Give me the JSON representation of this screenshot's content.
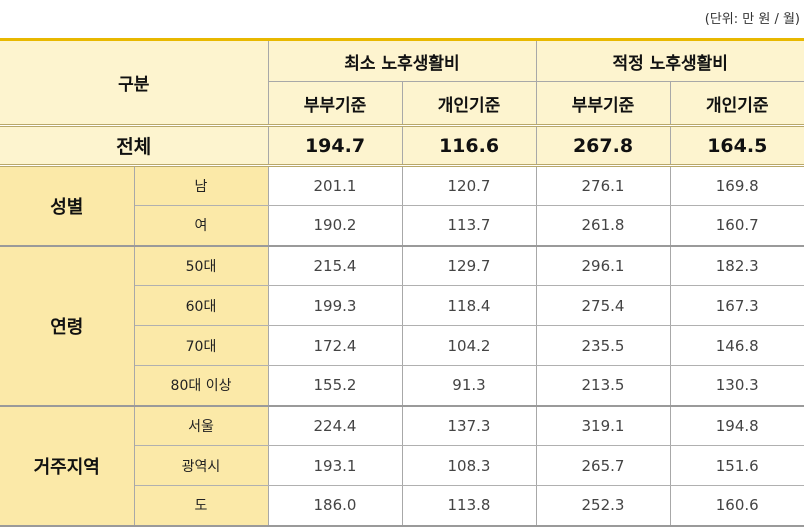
{
  "unit_note": "(단위: 만 원 / 월)",
  "header": {
    "category": "구분",
    "min_group": "최소 노후생활비",
    "proper_group": "적정 노후생활비",
    "couple": "부부기준",
    "individual": "개인기준"
  },
  "total": {
    "label": "전체",
    "values": [
      "194.7",
      "116.6",
      "267.8",
      "164.5"
    ]
  },
  "groups": [
    {
      "label": "성별",
      "rows": [
        {
          "label": "남",
          "values": [
            "201.1",
            "120.7",
            "276.1",
            "169.8"
          ]
        },
        {
          "label": "여",
          "values": [
            "190.2",
            "113.7",
            "261.8",
            "160.7"
          ]
        }
      ]
    },
    {
      "label": "연령",
      "rows": [
        {
          "label": "50대",
          "values": [
            "215.4",
            "129.7",
            "296.1",
            "182.3"
          ]
        },
        {
          "label": "60대",
          "values": [
            "199.3",
            "118.4",
            "275.4",
            "167.3"
          ]
        },
        {
          "label": "70대",
          "values": [
            "172.4",
            "104.2",
            "235.5",
            "146.8"
          ]
        },
        {
          "label": "80대 이상",
          "values": [
            "155.2",
            "91.3",
            "213.5",
            "130.3"
          ]
        }
      ]
    },
    {
      "label": "거주지역",
      "rows": [
        {
          "label": "서울",
          "values": [
            "224.4",
            "137.3",
            "319.1",
            "194.8"
          ]
        },
        {
          "label": "광역시",
          "values": [
            "193.1",
            "108.3",
            "265.7",
            "151.6"
          ]
        },
        {
          "label": "도",
          "values": [
            "186.0",
            "113.8",
            "252.3",
            "160.6"
          ]
        }
      ]
    }
  ]
}
